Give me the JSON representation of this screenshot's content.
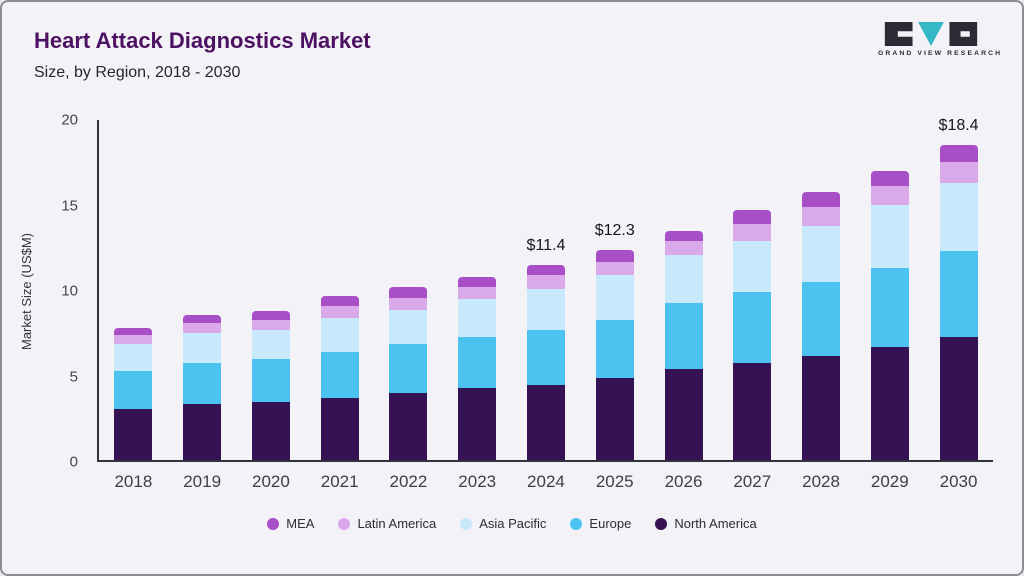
{
  "header": {
    "title": "Heart Attack Diagnostics Market",
    "subtitle": "Size, by Region, 2018 - 2030"
  },
  "logo": {
    "text": "GRAND VIEW RESEARCH",
    "mark_dark_color": "#2b2b36",
    "mark_teal_color": "#35b8c6"
  },
  "chart_data": {
    "type": "bar",
    "stacked": true,
    "title": "Heart Attack Diagnostics Market Size, by Region, 2018 - 2030",
    "xlabel": "",
    "ylabel": "Market Size (US$M)",
    "ylim": [
      0,
      20
    ],
    "yticks": [
      0,
      5,
      10,
      15,
      20
    ],
    "grid": false,
    "legend_position": "bottom",
    "categories": [
      "2018",
      "2019",
      "2020",
      "2021",
      "2022",
      "2023",
      "2024",
      "2025",
      "2026",
      "2027",
      "2028",
      "2029",
      "2030"
    ],
    "series": [
      {
        "name": "North America",
        "color": "#341253",
        "values": [
          3.0,
          3.3,
          3.4,
          3.6,
          3.9,
          4.2,
          4.4,
          4.8,
          5.3,
          5.7,
          6.1,
          6.6,
          7.2
        ]
      },
      {
        "name": "Europe",
        "color": "#4cc2f1",
        "values": [
          2.2,
          2.4,
          2.5,
          2.7,
          2.9,
          3.0,
          3.2,
          3.4,
          3.9,
          4.1,
          4.3,
          4.6,
          5.0
        ]
      },
      {
        "name": "Asia Pacific",
        "color": "#c7e9fb",
        "values": [
          1.6,
          1.7,
          1.7,
          2.0,
          2.0,
          2.2,
          2.4,
          2.6,
          2.8,
          3.0,
          3.3,
          3.7,
          4.0
        ]
      },
      {
        "name": "Latin America",
        "color": "#d9a9ea",
        "values": [
          0.5,
          0.6,
          0.6,
          0.7,
          0.7,
          0.7,
          0.8,
          0.8,
          0.8,
          1.0,
          1.1,
          1.1,
          1.2
        ]
      },
      {
        "name": "MEA",
        "color": "#a84fc7",
        "values": [
          0.4,
          0.5,
          0.5,
          0.6,
          0.6,
          0.6,
          0.6,
          0.7,
          0.6,
          0.8,
          0.9,
          0.9,
          1.0
        ]
      }
    ],
    "totals": [
      7.7,
      8.5,
      8.7,
      9.6,
      10.1,
      10.7,
      11.4,
      12.3,
      13.4,
      14.6,
      15.7,
      16.9,
      18.4
    ],
    "annotations": [
      {
        "category": "2024",
        "label": "$11.4"
      },
      {
        "category": "2025",
        "label": "$12.3"
      },
      {
        "category": "2030",
        "label": "$18.4"
      }
    ],
    "legend_order": [
      "MEA",
      "Latin America",
      "Asia Pacific",
      "Europe",
      "North America"
    ]
  }
}
